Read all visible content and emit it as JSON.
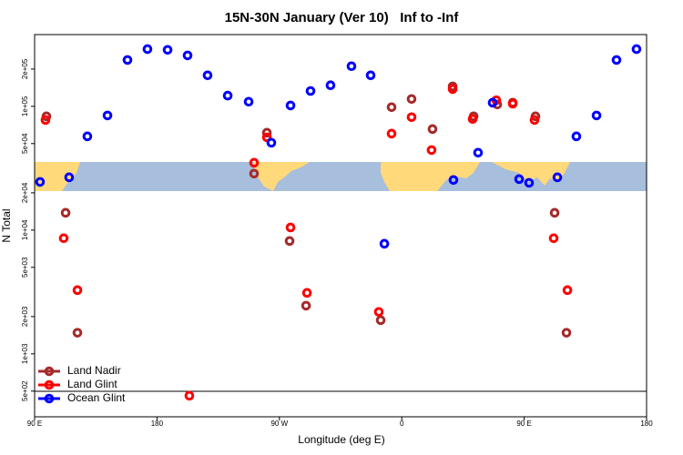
{
  "chart_data": {
    "type": "scatter",
    "title": "15N-30N January (Ver 10)   Inf to -Inf",
    "x_label": "Longitude (deg E)",
    "y_label": "N Total",
    "ylog": true,
    "xlim": [
      90,
      540
    ],
    "ylim": [
      310,
      380000
    ],
    "xticks": [
      {
        "value": 90,
        "label": "90 E"
      },
      {
        "value": 180,
        "label": "180"
      },
      {
        "value": 270,
        "label": "90 W"
      },
      {
        "value": 360,
        "label": "0"
      },
      {
        "value": 450,
        "label": "90 E"
      },
      {
        "value": 540,
        "label": "180"
      }
    ],
    "yticks": [
      {
        "value": 200000,
        "label": "2e+05"
      },
      {
        "value": 100000,
        "label": "1e+05"
      },
      {
        "value": 50000,
        "label": "5e+04"
      },
      {
        "value": 20000,
        "label": "2e+04"
      },
      {
        "value": 10000,
        "label": "1e+04"
      },
      {
        "value": 5000,
        "label": "5e+03"
      },
      {
        "value": 2000,
        "label": "2e+03"
      },
      {
        "value": 1000,
        "label": "1e+03"
      },
      {
        "value": 500,
        "label": "5e+02"
      }
    ],
    "legend": "bottomleft",
    "series": [
      {
        "name": "Land Nadir",
        "color": "#a52a2a",
        "x": [
          98.7,
          112.8,
          121.5,
          251.4,
          260.8,
          277.5,
          289.6,
          344.5,
          352.5,
          367.2,
          382.6,
          397.4,
          412.8,
          430.2,
          441.6,
          458.3,
          472.4,
          481.1
        ],
        "values": [
          83000,
          13800,
          1480,
          28600,
          61200,
          8160,
          2450,
          1870,
          98400,
          114600,
          65500,
          145000,
          83000,
          103500,
          107000,
          83000,
          13800,
          1480
        ]
      },
      {
        "name": "Land Glint",
        "color": "#ff0000",
        "x": [
          98,
          111.4,
          121.5,
          203.8,
          251.4,
          260.8,
          278.2,
          290.3,
          343.1,
          352.5,
          367.2,
          381.9,
          397.4,
          412.1,
          429.5,
          441.6,
          457.6,
          471.7,
          481.8
        ],
        "values": [
          77600,
          8590,
          3270,
          459,
          35000,
          56200,
          10500,
          3110,
          2180,
          60200,
          81700,
          44300,
          138000,
          79000,
          112000,
          105000,
          77600,
          8590,
          3270
        ]
      },
      {
        "name": "Ocean Glint",
        "color": "#0000ff",
        "x": [
          94,
          115.4,
          128.8,
          143.6,
          158.3,
          173,
          187.8,
          202.5,
          217.2,
          232,
          247.4,
          264.1,
          278.2,
          292.9,
          307.6,
          323,
          337.1,
          347.2,
          398,
          416.1,
          426.8,
          446.3,
          453.6,
          474.4,
          488.4,
          503.2,
          517.9,
          532.6
        ],
        "values": [
          24500,
          26700,
          57200,
          84400,
          237000,
          290000,
          286000,
          258000,
          178000,
          122000,
          109000,
          50800,
          101600,
          133000,
          148000,
          211000,
          178000,
          7760,
          25400,
          42200,
          107000,
          25800,
          24100,
          26700,
          57200,
          84400,
          237000,
          290000
        ]
      }
    ]
  }
}
